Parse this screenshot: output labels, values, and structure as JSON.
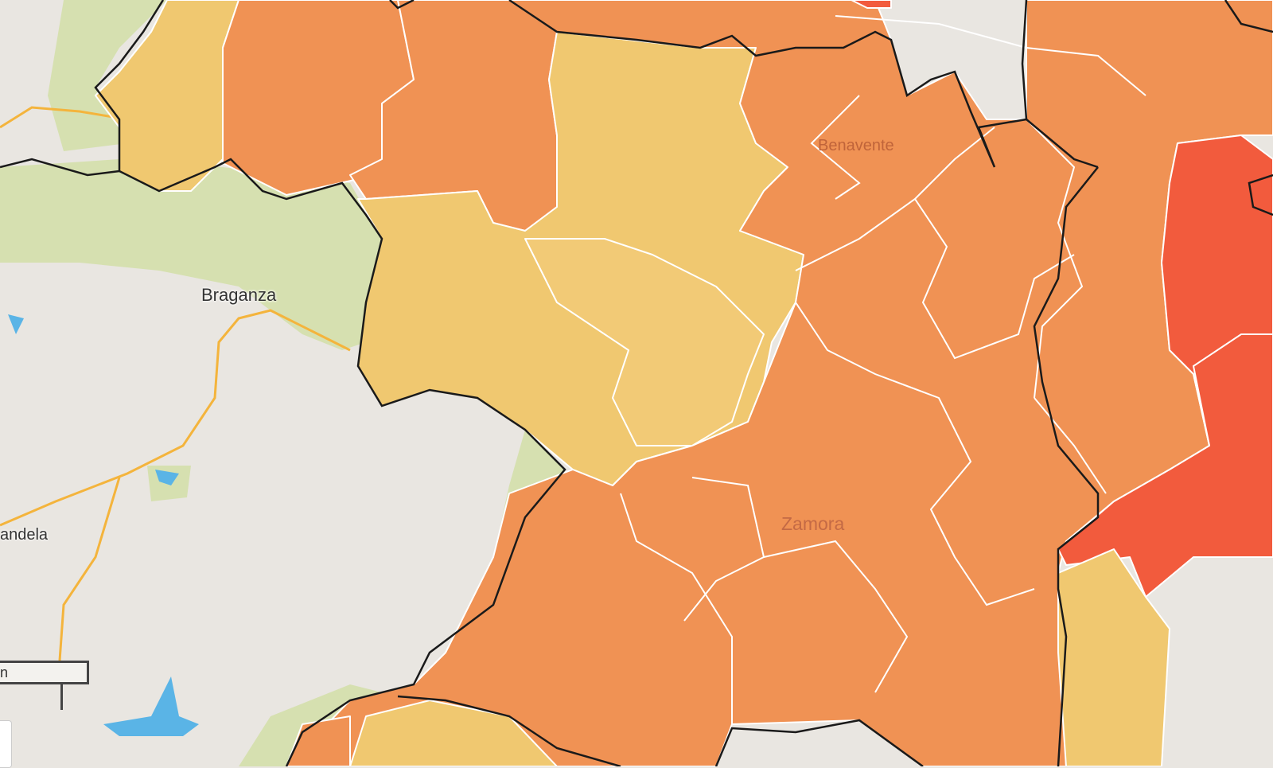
{
  "map": {
    "labels": {
      "braganza": "Braganza",
      "mirandela": "andela",
      "benavente": "Benavente",
      "zamora": "Zamora"
    },
    "scale_label": "n",
    "colors": {
      "base": "#e9e6e1",
      "forest": "#d6e0b0",
      "low": "#f0c870",
      "medium": "#f09254",
      "high": "#f25b3d",
      "water": "#5ab4e6",
      "road": "#f4b43c",
      "border": "#1a1a1a",
      "municipal_border": "#ffffff"
    }
  }
}
